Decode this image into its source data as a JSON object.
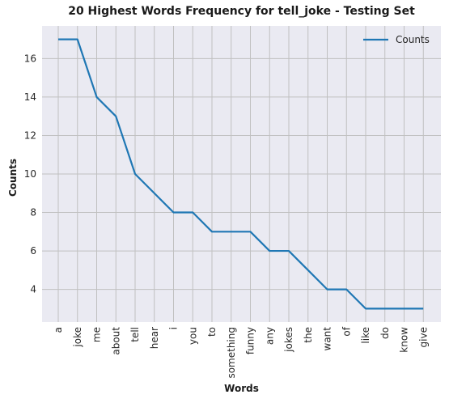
{
  "chart_data": {
    "type": "line",
    "title": "20 Highest Words Frequency for tell_joke - Testing Set",
    "xlabel": "Words",
    "ylabel": "Counts",
    "categories": [
      "a",
      "joke",
      "me",
      "about",
      "tell",
      "hear",
      "i",
      "you",
      "to",
      "something",
      "funny",
      "any",
      "jokes",
      "the",
      "want",
      "of",
      "like",
      "do",
      "know",
      "give"
    ],
    "series": [
      {
        "name": "Counts",
        "values": [
          17,
          17,
          14,
          13,
          10,
          9,
          8,
          8,
          7,
          7,
          7,
          6,
          6,
          5,
          4,
          4,
          3,
          3,
          3,
          3
        ]
      }
    ],
    "yticks": [
      4,
      6,
      8,
      10,
      12,
      14,
      16
    ],
    "ylim": [
      2.3,
      17.7
    ],
    "grid": true,
    "legend_position": "top-right",
    "colors": {
      "series": "#1f77b4",
      "background": "#eaeaf2",
      "grid": "#c0c0c0"
    }
  }
}
